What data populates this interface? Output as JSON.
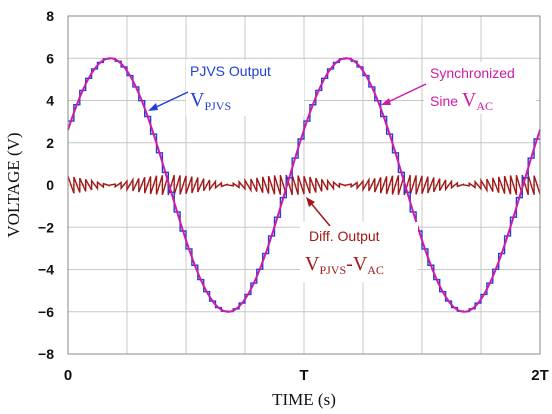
{
  "chart_data": {
    "type": "line",
    "xlabel": "TIME (s)",
    "ylabel": "VOLTAGE (V)",
    "ylim": [
      -8,
      8
    ],
    "yticks": [
      8,
      6,
      4,
      2,
      0,
      -2,
      -4,
      -6,
      -8
    ],
    "xticks": [
      "0",
      "T",
      "2T"
    ],
    "xrange_periods": [
      0,
      2
    ],
    "grid": true,
    "series": [
      {
        "name": "PJVS Output V_PJVS",
        "kind": "stepped",
        "amplitude": 6,
        "steps_per_period": 40,
        "color": "#1f3fd6"
      },
      {
        "name": "Synchronized Sine V_AC",
        "kind": "sine",
        "amplitude": 6,
        "color": "#d01aa8"
      },
      {
        "name": "Diff. Output V_PJVS-V_AC",
        "kind": "difference",
        "peak_amplitude": 0.5,
        "color": "#a01818"
      }
    ],
    "annotations": {
      "pjvs": {
        "line1": "PJVS Output",
        "main": "V",
        "sub": "PJVS",
        "color": "#1f3fd6"
      },
      "sine": {
        "line1": "Synchronized",
        "prefix": "Sine ",
        "main": "V",
        "sub": "AC",
        "color": "#d01aa8"
      },
      "diff": {
        "line1": "Diff. Output",
        "main1": "V",
        "sub1": "PJVS",
        "dash": "-",
        "main2": "V",
        "sub2": "AC",
        "color": "#a01818"
      }
    }
  }
}
